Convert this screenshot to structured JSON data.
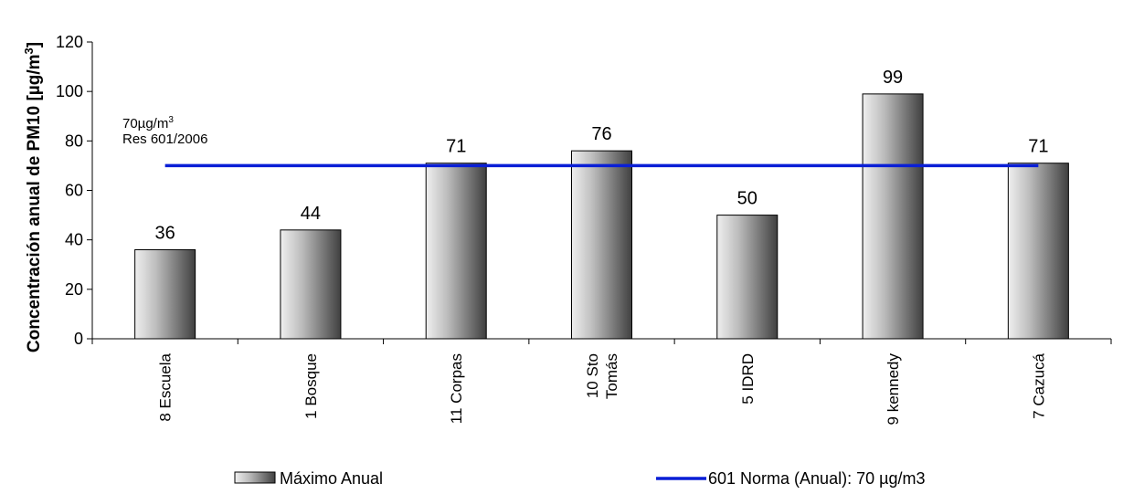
{
  "chart_data": {
    "type": "bar",
    "categories": [
      [
        "8 Escuela"
      ],
      [
        "1 Bosque"
      ],
      [
        "11 Corpas"
      ],
      [
        "10 Sto",
        "Tomás"
      ],
      [
        "5 IDRD"
      ],
      [
        "9 kennedy"
      ],
      [
        "7 Cazucá"
      ]
    ],
    "series": [
      {
        "name": "Máximo Anual",
        "type": "bar",
        "values": [
          36,
          44,
          71,
          76,
          50,
          99,
          71
        ],
        "color": "#8a8a8a"
      },
      {
        "name": "601 Norma (Anual): 70 µg/m3",
        "type": "line",
        "values": [
          70,
          70,
          70,
          70,
          70,
          70,
          70
        ],
        "color": "#0a1fd6"
      }
    ],
    "ylabel_main": "Concentración anual de PM10 [µg/m",
    "ylabel_sup": "3",
    "ylabel_end": "]",
    "ylim": [
      0,
      120
    ],
    "yticks": [
      0,
      20,
      40,
      60,
      80,
      100,
      120
    ],
    "annotation": {
      "line1_main": "70µg/m",
      "line1_sup": "3",
      "line2": "Res 601/2006"
    },
    "grid": false,
    "legend_position": "bottom"
  }
}
